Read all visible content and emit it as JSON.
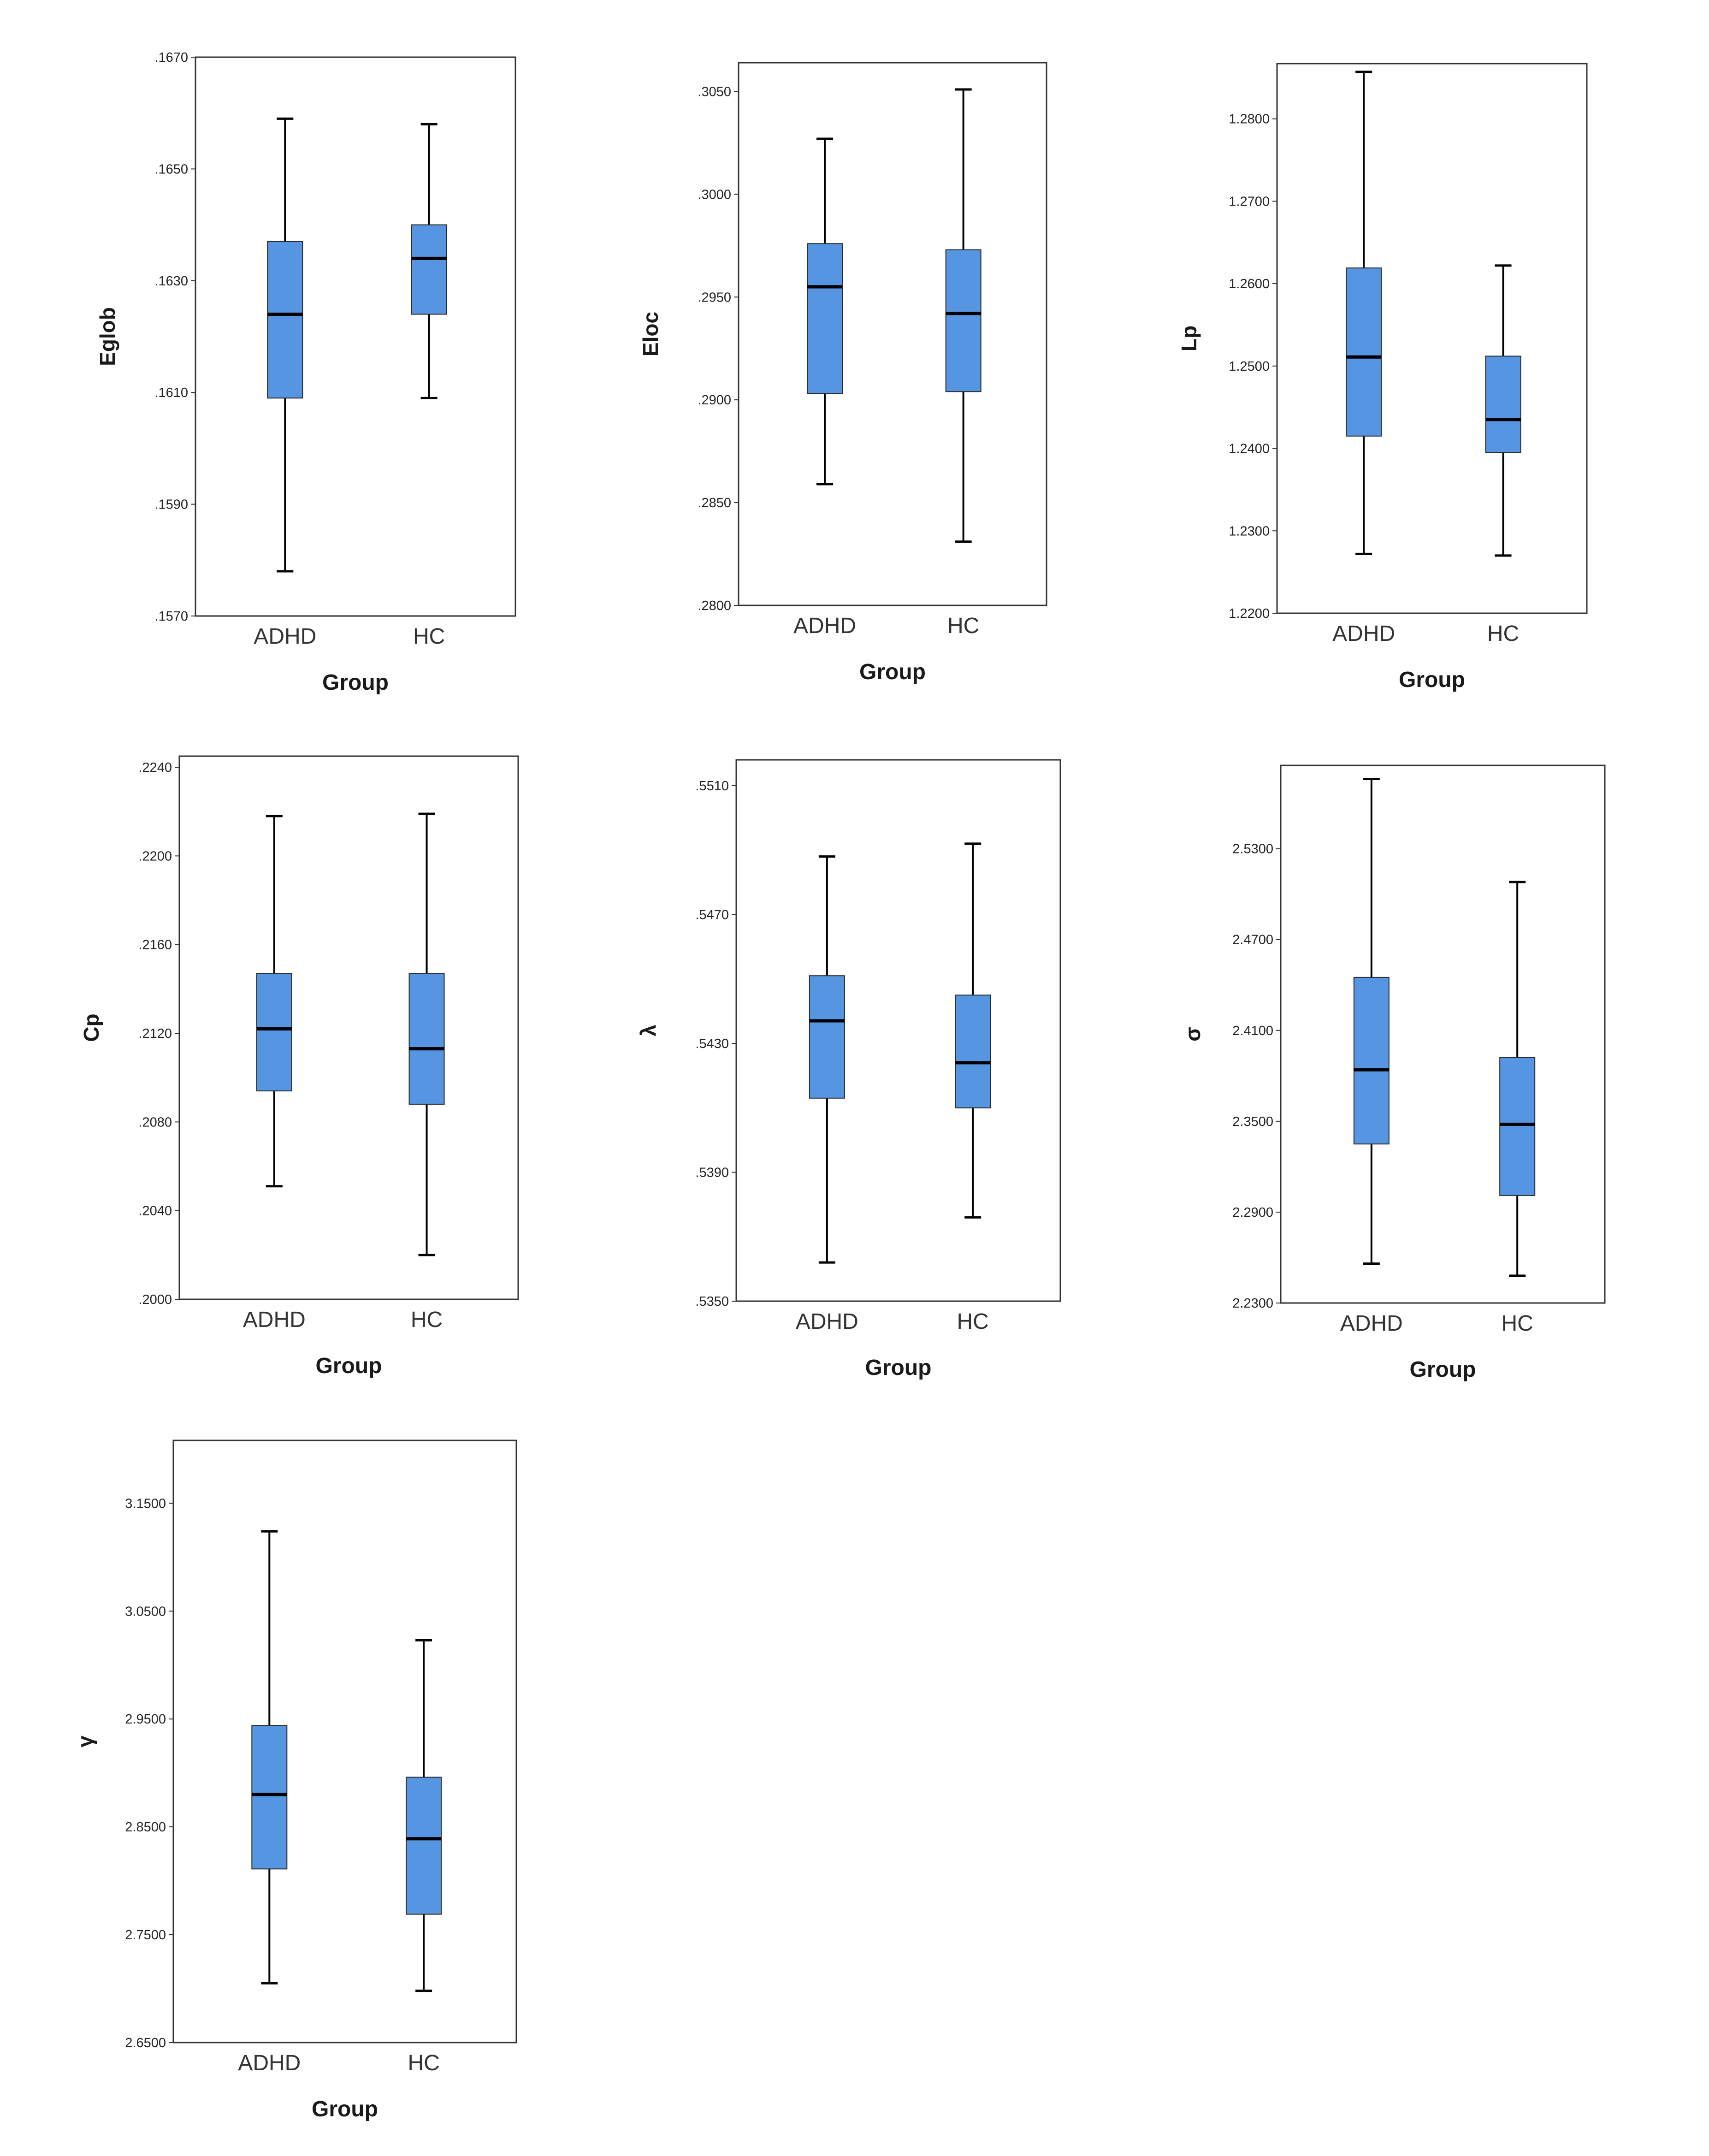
{
  "colors": {
    "box_fill": "#5595e2",
    "box_edge": "#2a2a2a",
    "median": "#000000",
    "frame": "#333333"
  },
  "chart_data": [
    {
      "type": "boxplot",
      "ylabel": "Eglob",
      "xlabel": "Group",
      "categories": [
        "ADHD",
        "HC"
      ],
      "ylim": [
        0.157,
        0.167
      ],
      "yticks": [
        0.157,
        0.159,
        0.161,
        0.163,
        0.165,
        0.167
      ],
      "ytick_labels": [
        ".1570",
        ".1590",
        ".1610",
        ".1630",
        ".1650",
        ".1670"
      ],
      "boxes": [
        {
          "group": "ADHD",
          "min": 0.1578,
          "q1": 0.1609,
          "median": 0.1624,
          "q3": 0.1637,
          "max": 0.1659
        },
        {
          "group": "HC",
          "min": 0.1609,
          "q1": 0.1624,
          "median": 0.1634,
          "q3": 0.164,
          "max": 0.1658
        }
      ]
    },
    {
      "type": "boxplot",
      "ylabel": "Eloc",
      "xlabel": "Group",
      "categories": [
        "ADHD",
        "HC"
      ],
      "ylim": [
        0.28,
        0.3064
      ],
      "yticks": [
        0.28,
        0.285,
        0.29,
        0.295,
        0.3,
        0.305
      ],
      "ytick_labels": [
        ".2800",
        ".2850",
        ".2900",
        ".2950",
        ".3000",
        ".3050"
      ],
      "boxes": [
        {
          "group": "ADHD",
          "min": 0.2859,
          "q1": 0.2903,
          "median": 0.2955,
          "q3": 0.2976,
          "max": 0.3027
        },
        {
          "group": "HC",
          "min": 0.2831,
          "q1": 0.2904,
          "median": 0.2942,
          "q3": 0.2973,
          "max": 0.3051
        }
      ]
    },
    {
      "type": "boxplot",
      "ylabel": "Lp",
      "xlabel": "Group",
      "categories": [
        "ADHD",
        "HC"
      ],
      "ylim": [
        1.22,
        1.2867
      ],
      "yticks": [
        1.22,
        1.23,
        1.24,
        1.25,
        1.26,
        1.27,
        1.28
      ],
      "ytick_labels": [
        "1.2200",
        "1.2300",
        "1.2400",
        "1.2500",
        "1.2600",
        "1.2700",
        "1.2800"
      ],
      "boxes": [
        {
          "group": "ADHD",
          "min": 1.2272,
          "q1": 1.2415,
          "median": 1.2511,
          "q3": 1.2619,
          "max": 1.2857
        },
        {
          "group": "HC",
          "min": 1.227,
          "q1": 1.2395,
          "median": 1.2435,
          "q3": 1.2512,
          "max": 1.2622
        }
      ]
    },
    {
      "type": "boxplot",
      "ylabel": "Cp",
      "xlabel": "Group",
      "categories": [
        "ADHD",
        "HC"
      ],
      "ylim": [
        0.2,
        0.2245
      ],
      "yticks": [
        0.2,
        0.204,
        0.208,
        0.212,
        0.216,
        0.22,
        0.224
      ],
      "ytick_labels": [
        ".2000",
        ".2040",
        ".2080",
        ".2120",
        ".2160",
        ".2200",
        ".2240"
      ],
      "boxes": [
        {
          "group": "ADHD",
          "min": 0.2051,
          "q1": 0.2094,
          "median": 0.2122,
          "q3": 0.2147,
          "max": 0.2218
        },
        {
          "group": "HC",
          "min": 0.202,
          "q1": 0.2088,
          "median": 0.2113,
          "q3": 0.2147,
          "max": 0.2219
        }
      ]
    },
    {
      "type": "boxplot",
      "ylabel": "λ",
      "xlabel": "Group",
      "categories": [
        "ADHD",
        "HC"
      ],
      "ylim": [
        0.535,
        0.5518
      ],
      "yticks": [
        0.535,
        0.539,
        0.543,
        0.547,
        0.551
      ],
      "ytick_labels": [
        ".5350",
        ".5390",
        ".5430",
        ".5470",
        ".5510"
      ],
      "boxes": [
        {
          "group": "ADHD",
          "min": 0.5362,
          "q1": 0.5413,
          "median": 0.5437,
          "q3": 0.5451,
          "max": 0.5488
        },
        {
          "group": "HC",
          "min": 0.5376,
          "q1": 0.541,
          "median": 0.5424,
          "q3": 0.5445,
          "max": 0.5492
        }
      ]
    },
    {
      "type": "boxplot",
      "ylabel": "σ",
      "xlabel": "Group",
      "categories": [
        "ADHD",
        "HC"
      ],
      "ylim": [
        2.23,
        2.585
      ],
      "yticks": [
        2.23,
        2.29,
        2.35,
        2.41,
        2.47,
        2.53
      ],
      "ytick_labels": [
        "2.2300",
        "2.2900",
        "2.3500",
        "2.4100",
        "2.4700",
        "2.5300"
      ],
      "boxes": [
        {
          "group": "ADHD",
          "min": 2.256,
          "q1": 2.335,
          "median": 2.384,
          "q3": 2.445,
          "max": 2.576
        },
        {
          "group": "HC",
          "min": 2.248,
          "q1": 2.301,
          "median": 2.348,
          "q3": 2.392,
          "max": 2.508
        }
      ]
    },
    {
      "type": "boxplot",
      "ylabel": "γ",
      "xlabel": "Group",
      "categories": [
        "ADHD",
        "HC"
      ],
      "ylim": [
        2.65,
        3.2083
      ],
      "yticks": [
        2.65,
        2.75,
        2.85,
        2.95,
        3.05,
        3.15
      ],
      "ytick_labels": [
        "2.6500",
        "2.7500",
        "2.8500",
        "2.9500",
        "3.0500",
        "3.1500"
      ],
      "boxes": [
        {
          "group": "ADHD",
          "min": 2.705,
          "q1": 2.811,
          "median": 2.88,
          "q3": 2.944,
          "max": 3.124
        },
        {
          "group": "HC",
          "min": 2.698,
          "q1": 2.769,
          "median": 2.839,
          "q3": 2.896,
          "max": 3.023
        }
      ]
    }
  ]
}
